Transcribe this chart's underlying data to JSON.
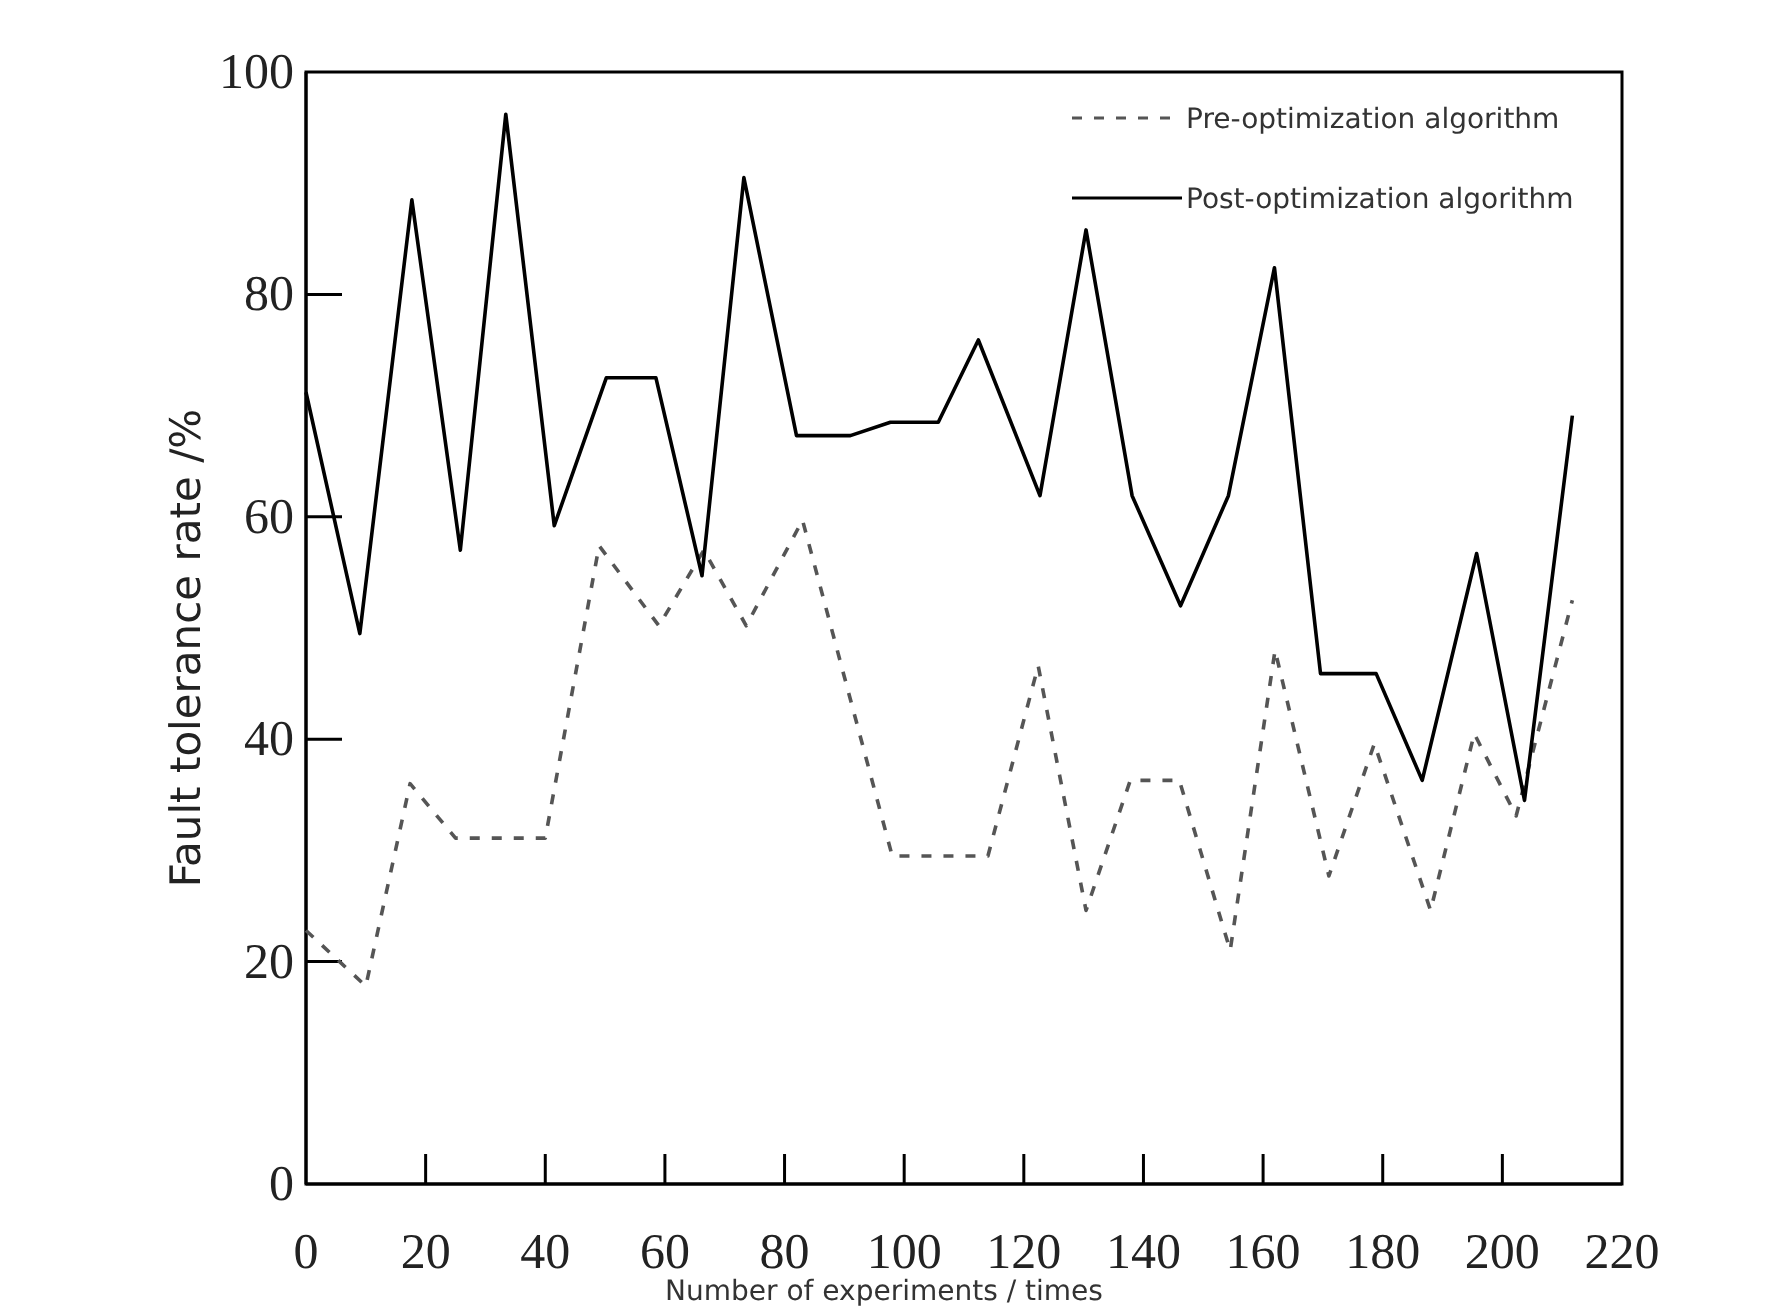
{
  "chart_data": {
    "type": "line",
    "xlabel": "Number of experiments / times",
    "ylabel": "Fault tolerance rate /%",
    "xlim": [
      0,
      220
    ],
    "xticks": [
      0,
      20,
      40,
      60,
      80,
      100,
      120,
      140,
      160,
      180,
      200,
      220
    ],
    "ylim": [
      0,
      100
    ],
    "yticks": [
      0,
      20,
      40,
      60,
      80,
      100
    ],
    "grid": false,
    "legend": "top right",
    "marker": "none",
    "series": [
      {
        "name": "Pre-optimization algorithm",
        "color": "#555555",
        "line_style": "dashed",
        "x": [
          0,
          10,
          17.4,
          25,
          40,
          49,
          59,
          66.5,
          73.6,
          83,
          98,
          114,
          122.4,
          130.4,
          137.8,
          146,
          154.5,
          162,
          171,
          178.6,
          188,
          195.3,
          202.3,
          211.7
        ],
        "values": [
          22.8,
          17.8,
          36,
          31.1,
          31.1,
          57.4,
          50.2,
          57,
          50.2,
          59.7,
          29.5,
          29.5,
          46.6,
          24.6,
          36.3,
          36.3,
          21,
          48,
          27.7,
          39.6,
          24.6,
          40.5,
          33.1,
          52.5
        ]
      },
      {
        "name": "Post-optimization algorithm",
        "color": "#000000",
        "line_style": "solid",
        "x": [
          0,
          9,
          17.7,
          25.8,
          33.4,
          41.5,
          50.2,
          58.5,
          66.2,
          73.2,
          82,
          91,
          97.7,
          105.7,
          112.4,
          122.7,
          130.4,
          138.1,
          146.2,
          154.2,
          161.9,
          169.6,
          178.9,
          186.6,
          195.7,
          203.7,
          211.7
        ],
        "values": [
          71.2,
          49.5,
          88.5,
          57,
          96.2,
          59.2,
          72.5,
          72.5,
          54.7,
          90.5,
          67.3,
          67.3,
          68.5,
          68.5,
          75.9,
          61.9,
          85.8,
          61.9,
          52,
          61.9,
          82.4,
          45.9,
          45.9,
          36.3,
          56.7,
          34.5,
          69.1
        ]
      }
    ]
  }
}
